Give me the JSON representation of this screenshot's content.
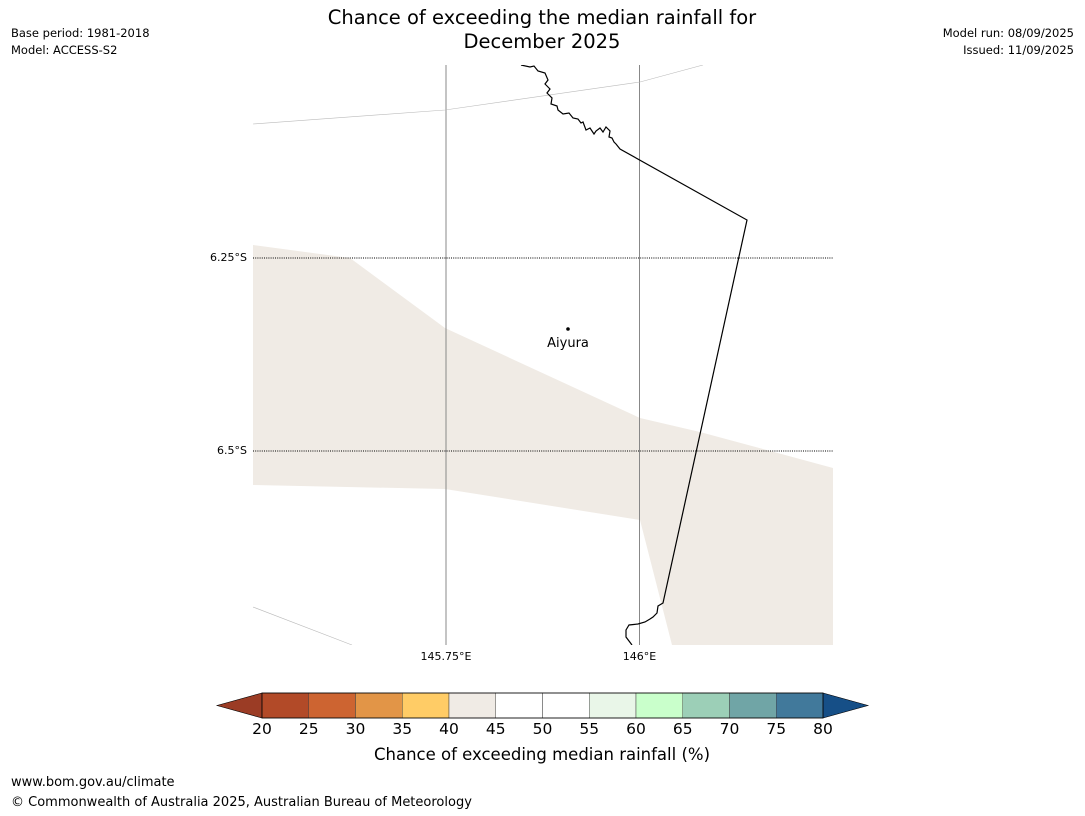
{
  "title": "Chance of exceeding the median rainfall for\nDecember 2025",
  "meta_left": [
    "Base period: 1981-2018",
    "Model: ACCESS-S2"
  ],
  "meta_right": [
    "Model run: 08/09/2025",
    "Issued: 11/09/2025"
  ],
  "map": {
    "lat_labels": [
      "6.25°S",
      "6.5°S"
    ],
    "lon_labels": [
      "145.75°E",
      "146°E"
    ],
    "place": "Aiyura",
    "shaded_color": "#f0ebe5",
    "border_color": "#000000"
  },
  "colorbar": {
    "ticks": [
      "20",
      "25",
      "30",
      "35",
      "40",
      "45",
      "50",
      "55",
      "60",
      "65",
      "70",
      "75",
      "80"
    ],
    "low_extend_color": "#9b3c25",
    "high_extend_color": "#164f87",
    "colors": [
      "#b24a28",
      "#cd6431",
      "#e29547",
      "#ffcc66",
      "#f0ebe5",
      "#ffffff",
      "#ffffff",
      "#e9f6e8",
      "#c9ffcb",
      "#9ccfb7",
      "#70a5a6",
      "#41799b"
    ],
    "label": "Chance of exceeding median rainfall (%)"
  },
  "footer": {
    "url": "www.bom.gov.au/climate",
    "copyright": "© Commonwealth of Australia 2025, Australian Bureau of Meteorology"
  }
}
